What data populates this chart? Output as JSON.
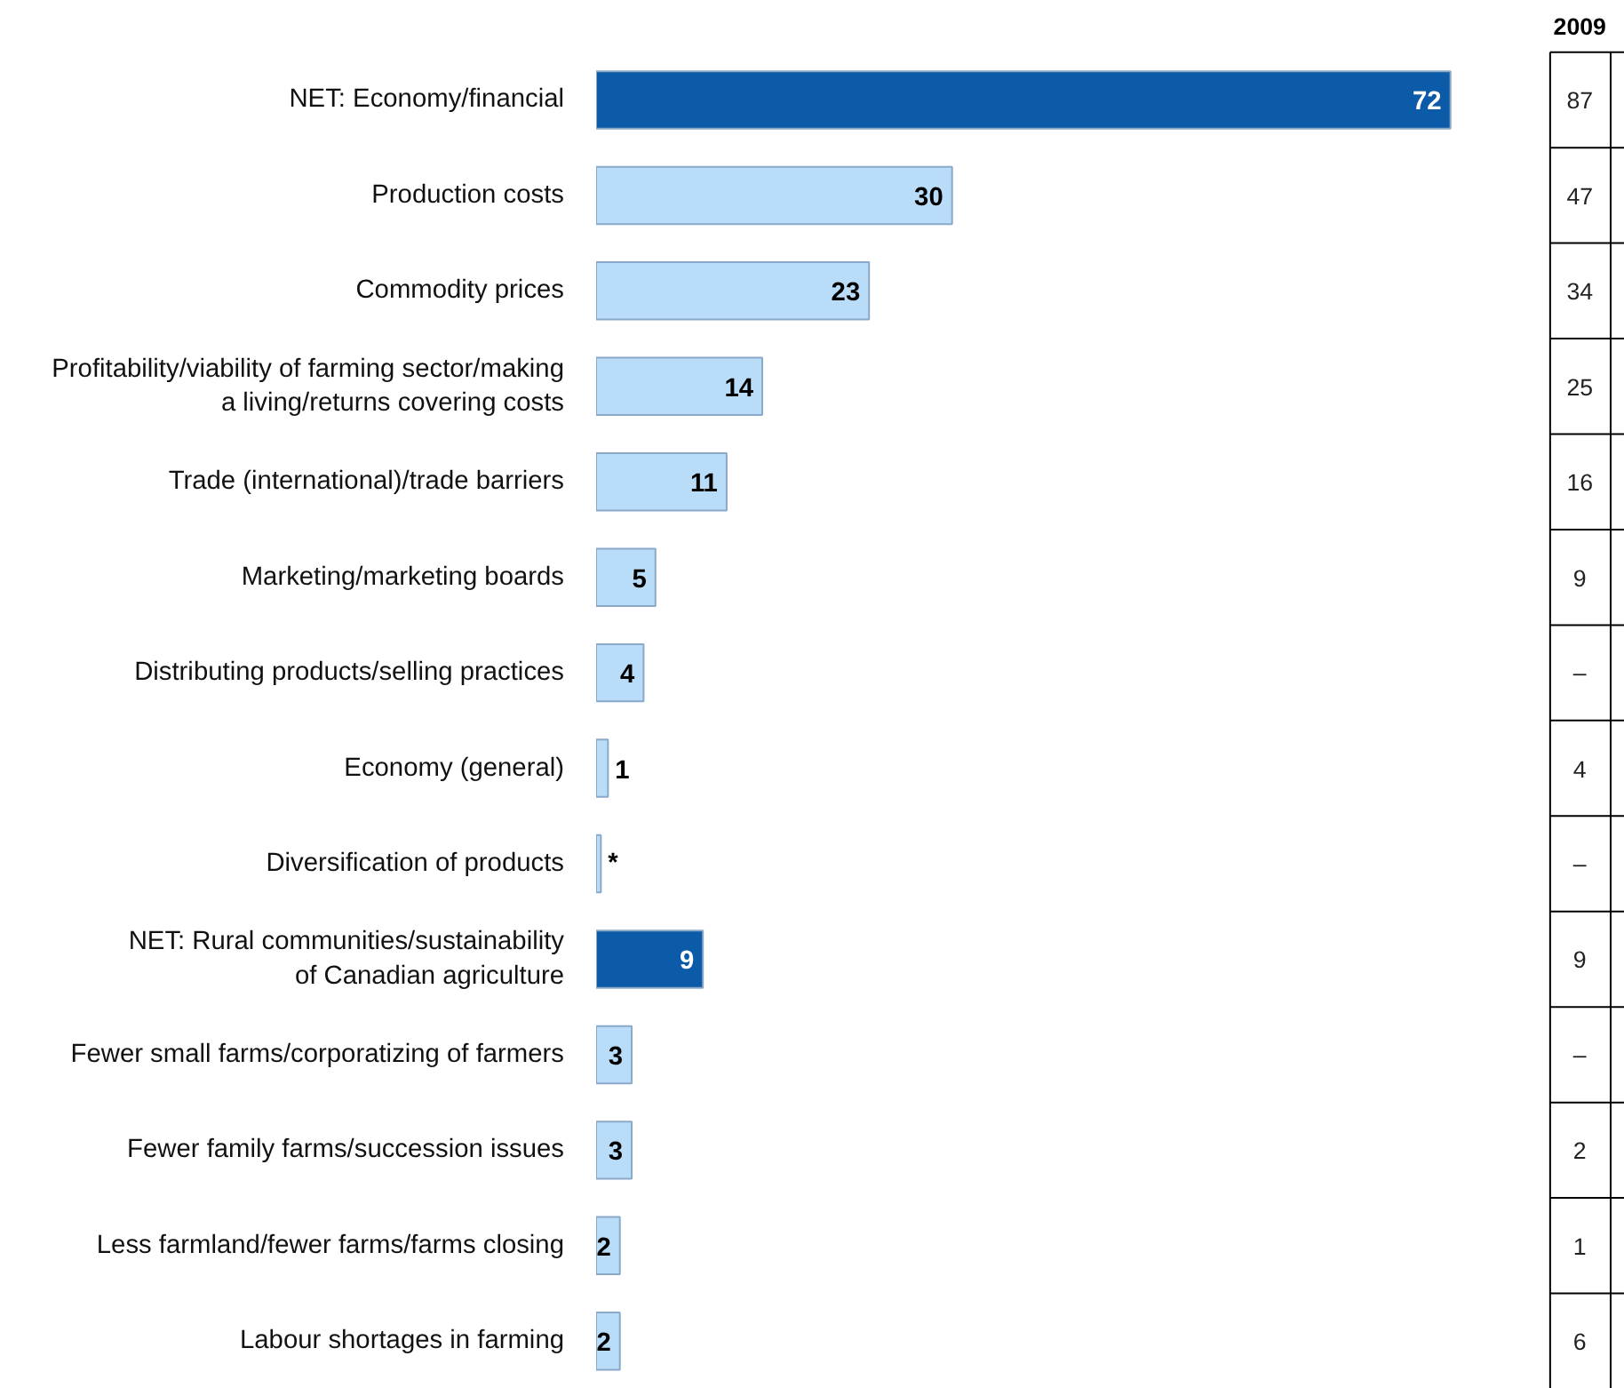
{
  "chart_data": {
    "type": "bar",
    "orientation": "horizontal",
    "categories": [
      "NET: Economy/financial",
      "Production costs",
      "Commodity prices",
      "Profitability/viability of farming sector/making\na living/returns covering costs",
      "Trade (international)/trade barriers",
      "Marketing/marketing boards",
      "Distributing products/selling practices",
      "Economy (general)",
      "Diversification of products",
      "NET: Rural communities/sustainability\nof Canadian agriculture",
      "Fewer small farms/corporatizing of farmers",
      "Fewer family farms/succession issues",
      "Less farmland/fewer farms/farms closing",
      "Labour shortages in farming"
    ],
    "values": [
      72,
      30,
      23,
      14,
      11,
      5,
      4,
      1,
      0.4,
      9,
      3,
      3,
      2,
      2
    ],
    "value_labels": [
      "72",
      "30",
      "23",
      "14",
      "11",
      "5",
      "4",
      "1",
      "*",
      "9",
      "3",
      "3",
      "2",
      "2"
    ],
    "colors": [
      "#0b5ba8",
      "#b9dcf8",
      "#b9dcf8",
      "#b9dcf8",
      "#b9dcf8",
      "#b9dcf8",
      "#b9dcf8",
      "#b9dcf8",
      "#b9dcf8",
      "#0b5ba8",
      "#b9dcf8",
      "#b9dcf8",
      "#b9dcf8",
      "#b9dcf8"
    ],
    "annotations": [
      "2009",
      "87",
      "47",
      "34",
      "25",
      "16",
      "9",
      "–",
      "4",
      "–",
      "9",
      "–",
      "2",
      "1",
      "6"
    ],
    "grid": false
  }
}
